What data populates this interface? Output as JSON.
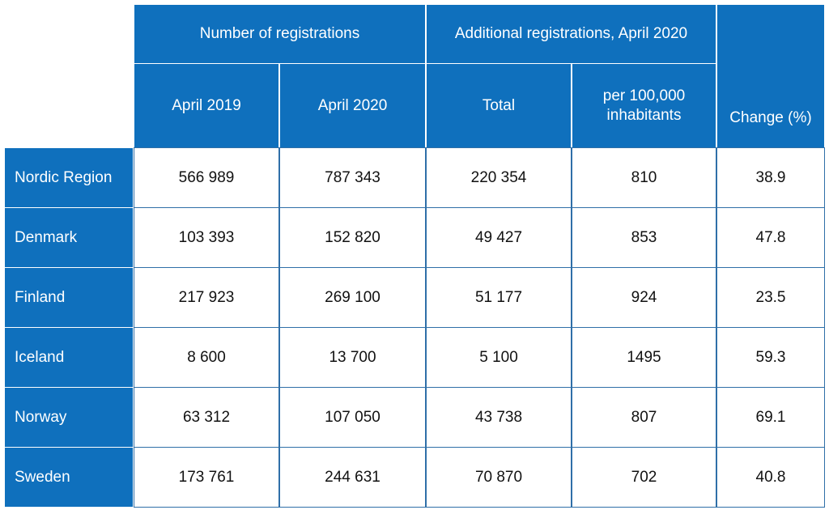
{
  "table": {
    "header_groups": [
      "Number of registrations",
      "Additional registrations, April 2020"
    ],
    "change_header": "Change (%)",
    "columns": [
      "April 2019",
      "April 2020",
      "Total",
      "per 100,000 inhabitants"
    ],
    "rows": [
      [
        "Nordic Region",
        "566 989",
        "787 343",
        "220 354",
        "810",
        "38.9"
      ],
      [
        "Denmark",
        "103 393",
        "152 820",
        "49 427",
        "853",
        "47.8"
      ],
      [
        "Finland",
        "217 923",
        "269 100",
        "51 177",
        "924",
        "23.5"
      ],
      [
        "Iceland",
        "8 600",
        "13 700",
        "5 100",
        "1495",
        "59.3"
      ],
      [
        "Norway",
        "63 312",
        "107 050",
        "43 738",
        "807",
        "69.1"
      ],
      [
        "Sweden",
        "173 761",
        "244 631",
        "70 870",
        "702",
        "40.8"
      ]
    ]
  }
}
